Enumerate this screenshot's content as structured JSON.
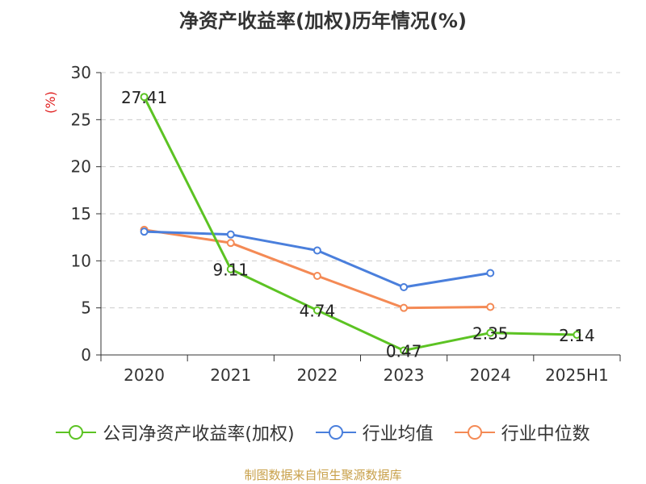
{
  "title": "净资产收益率(加权)历年情况(%)",
  "source": "制图数据来自恒生聚源数据库",
  "colors": {
    "company": "#5cc323",
    "industry_avg": "#4a7fdc",
    "industry_median": "#f48a55",
    "axis": "#333333",
    "grid": "#cccccc",
    "unit": "#e02020"
  },
  "chart_data": {
    "type": "line",
    "title": "净资产收益率(加权)历年情况(%)",
    "ylabel": "(%)",
    "xlabel": "",
    "categories": [
      "2020",
      "2021",
      "2022",
      "2023",
      "2024",
      "2025H1"
    ],
    "ylim": [
      0,
      30
    ],
    "yticks": [
      0,
      5,
      10,
      15,
      20,
      25,
      30
    ],
    "grid": "horizontal dashed",
    "legend_position": "bottom",
    "series": [
      {
        "name": "公司净资产收益率(加权)",
        "color": "#5cc323",
        "values": [
          27.41,
          9.11,
          4.74,
          0.47,
          2.35,
          2.14
        ],
        "data_labels": [
          "27.41",
          "9.11",
          "4.74",
          "0.47",
          "2.35",
          "2.14"
        ]
      },
      {
        "name": "行业均值",
        "color": "#4a7fdc",
        "values": [
          13.1,
          12.8,
          11.1,
          7.2,
          8.7,
          null
        ]
      },
      {
        "name": "行业中位数",
        "color": "#f48a55",
        "values": [
          13.3,
          11.9,
          8.4,
          5.0,
          5.1,
          null
        ]
      }
    ]
  }
}
